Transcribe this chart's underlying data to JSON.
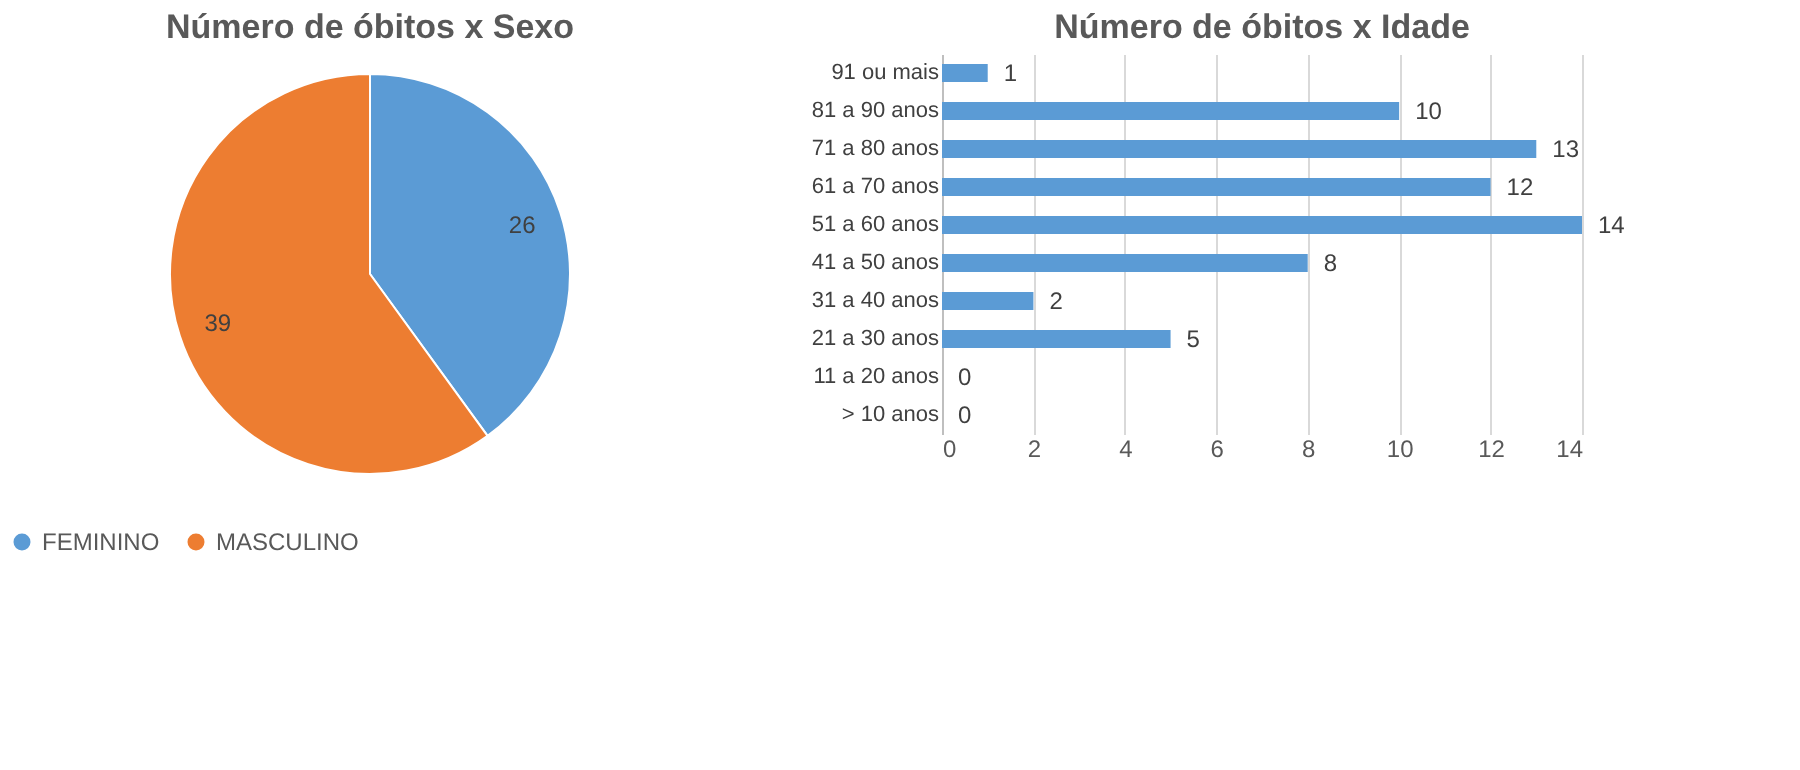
{
  "chart_data": [
    {
      "type": "pie",
      "title": "Número de óbitos x Sexo",
      "categories": [
        "FEMININO",
        "MASCULINO"
      ],
      "values": [
        26,
        39
      ],
      "colors": [
        "#5b9bd5",
        "#ed7d31"
      ],
      "data_labels": true,
      "legend": "bottom"
    },
    {
      "type": "bar",
      "orientation": "horizontal",
      "title": "Número de óbitos x Idade",
      "categories": [
        "91 ou mais",
        "81 a 90 anos",
        "71 a 80 anos",
        "61 a 70 anos",
        "51 a 60 anos",
        "41 a 50 anos",
        "31 a 40 anos",
        "21 a 30 anos",
        "11 a 20 anos",
        "> 10 anos"
      ],
      "values": [
        1,
        10,
        13,
        12,
        14,
        8,
        2,
        5,
        0,
        0
      ],
      "color": "#5b9bd5",
      "xlim": [
        0,
        14
      ],
      "xticks": [
        0,
        2,
        4,
        6,
        8,
        10,
        12,
        14
      ],
      "grid": "x",
      "data_labels": true
    }
  ]
}
